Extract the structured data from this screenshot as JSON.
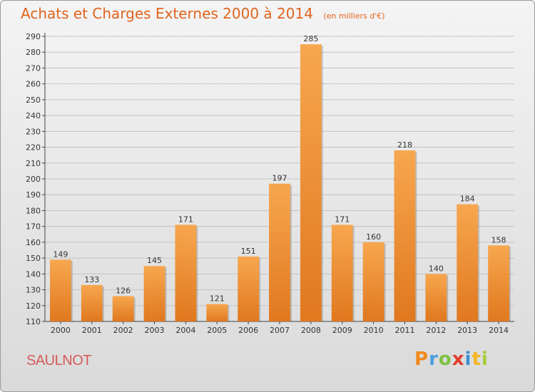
{
  "title": "Achats et Charges Externes 2000 à 2014",
  "subtitle": "(en milliers d'€)",
  "commune": "SAULNOT",
  "logo": {
    "text": "Proxiti",
    "letters": [
      "P",
      "r",
      "o",
      "x",
      "i",
      "t",
      "i"
    ]
  },
  "colors": {
    "bar_top": "#f7a74f",
    "bar_bottom": "#e0781e",
    "title": "#e0641e",
    "commune": "#d65a5a"
  },
  "chart_data": {
    "type": "bar",
    "title": "Achats et Charges Externes 2000 à 2014",
    "subtitle": "(en milliers d'€)",
    "xlabel": "",
    "ylabel": "",
    "categories": [
      "2000",
      "2001",
      "2002",
      "2003",
      "2004",
      "2005",
      "2006",
      "2007",
      "2008",
      "2009",
      "2010",
      "2011",
      "2012",
      "2013",
      "2014"
    ],
    "values": [
      149,
      133,
      126,
      145,
      171,
      121,
      151,
      197,
      285,
      171,
      160,
      218,
      140,
      184,
      158
    ],
    "ylim": [
      110,
      290
    ],
    "yticks": [
      110,
      120,
      130,
      140,
      150,
      160,
      170,
      180,
      190,
      200,
      210,
      220,
      230,
      240,
      250,
      260,
      270,
      280,
      290
    ],
    "grid": true,
    "legend": "none"
  }
}
